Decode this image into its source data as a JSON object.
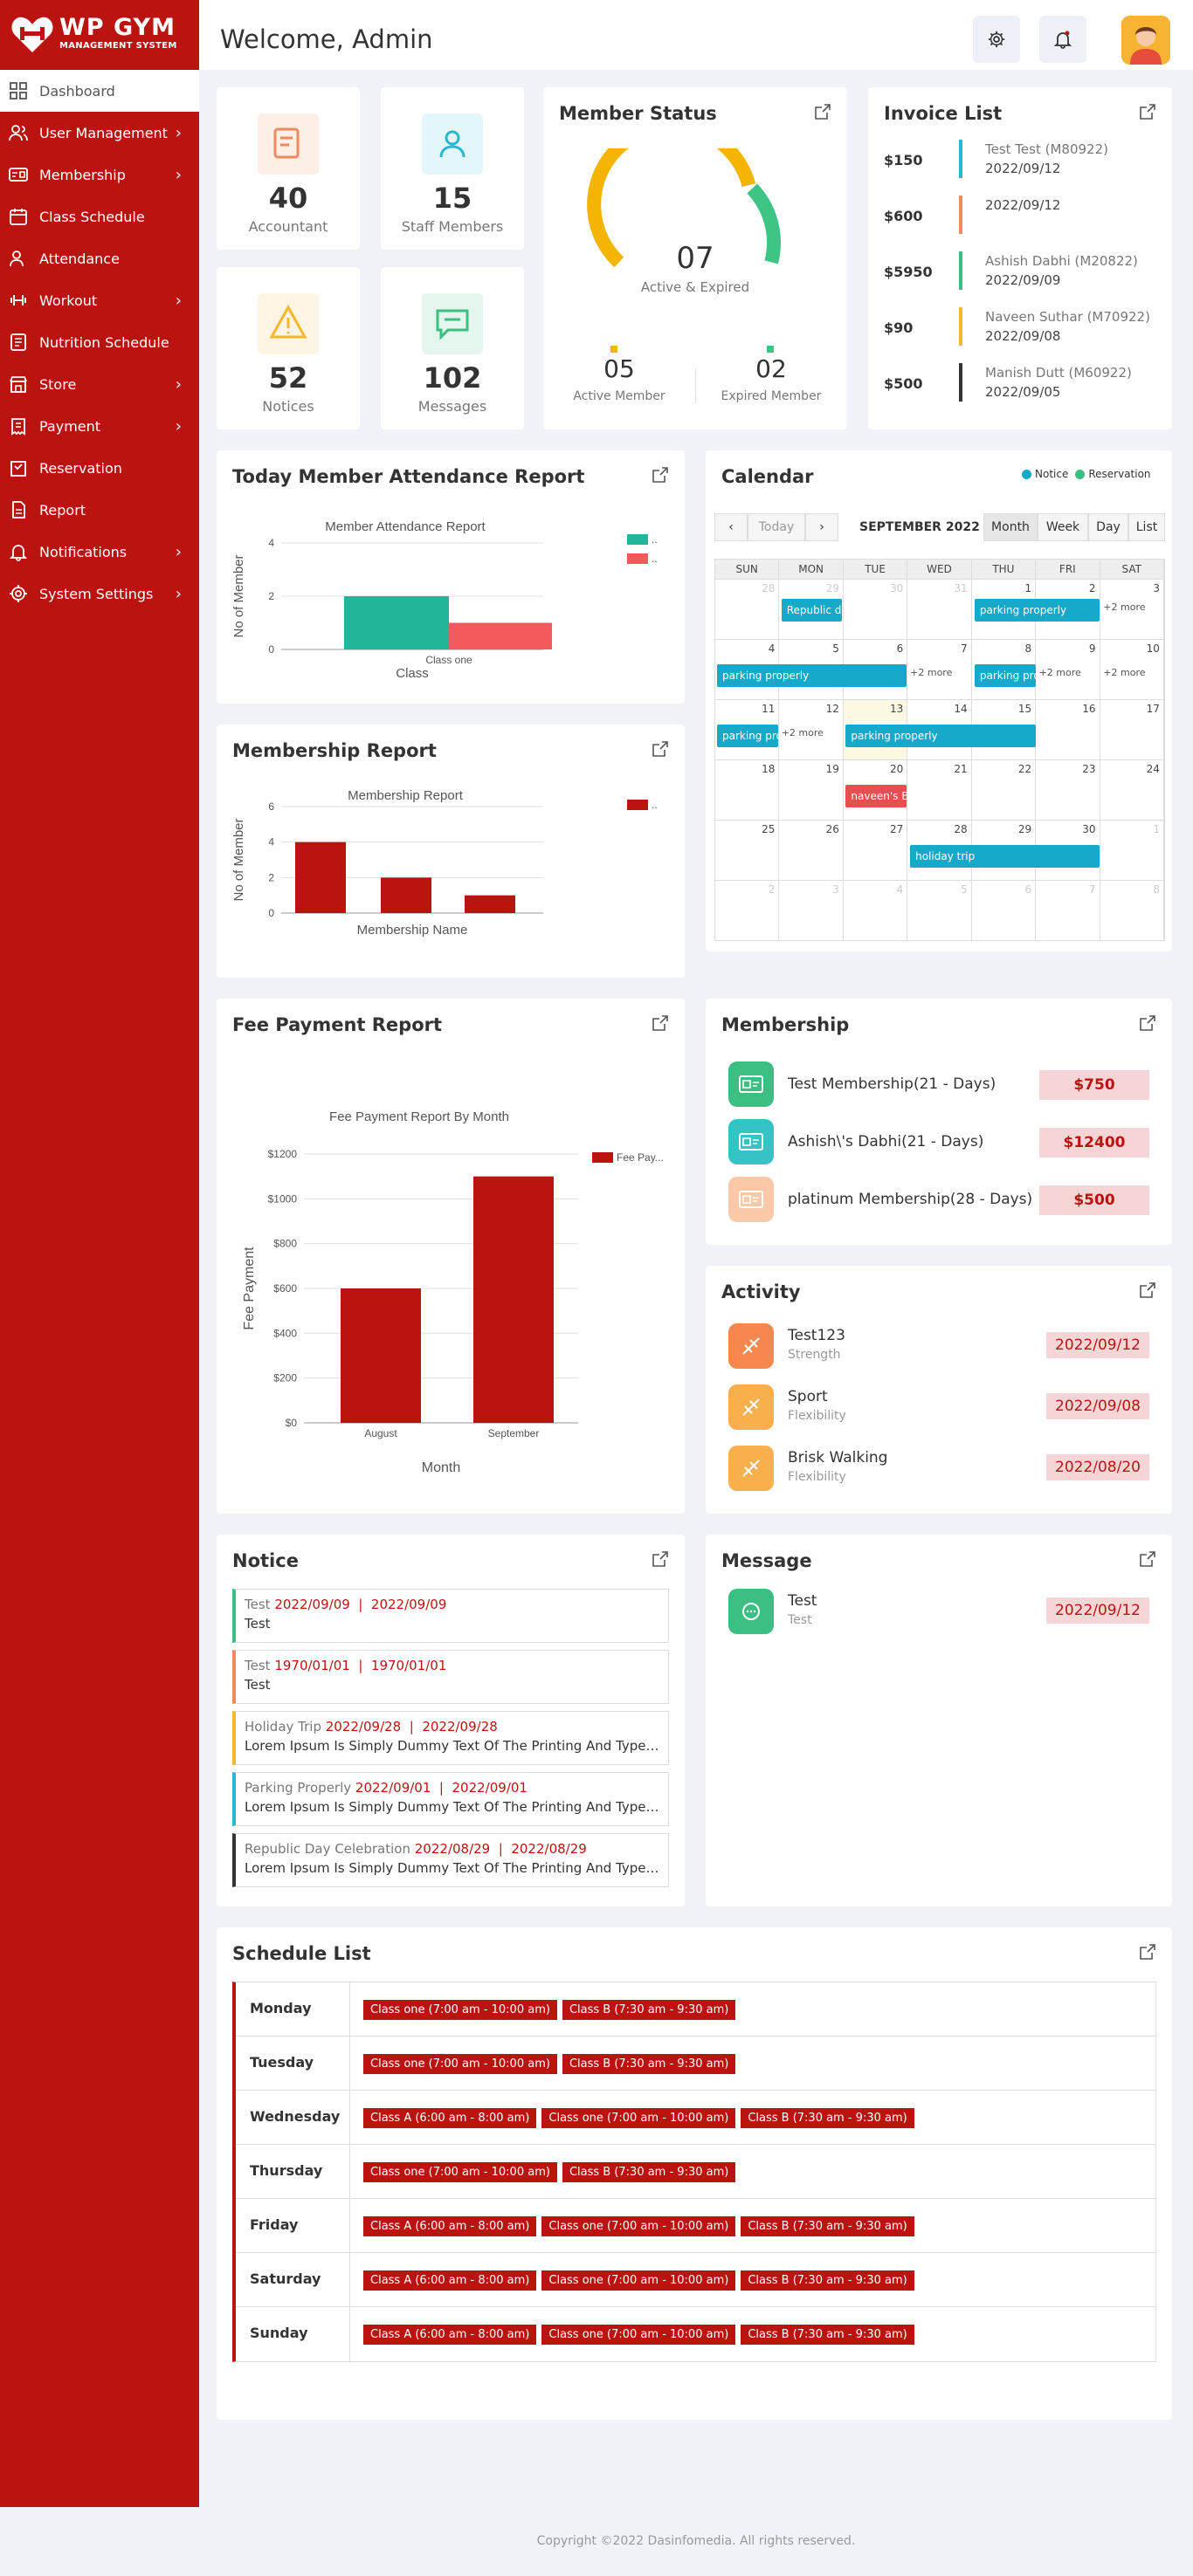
{
  "app": {
    "logo_text": "WP GYM",
    "logo_sub": "MANAGEMENT SYSTEM",
    "welcome": "Welcome, Admin"
  },
  "nav": [
    {
      "label": "Dashboard",
      "icon": "dashboard-icon",
      "chevron": ""
    },
    {
      "label": "User Management",
      "icon": "users-icon",
      "chevron": "›"
    },
    {
      "label": "Membership",
      "icon": "membership-card-icon",
      "chevron": "›"
    },
    {
      "label": "Class Schedule",
      "icon": "calendar-icon",
      "chevron": ""
    },
    {
      "label": "Attendance",
      "icon": "user-check-icon",
      "chevron": ""
    },
    {
      "label": "Workout",
      "icon": "dumbbell-icon",
      "chevron": "›"
    },
    {
      "label": "Nutrition Schedule",
      "icon": "nutrition-icon",
      "chevron": ""
    },
    {
      "label": "Store",
      "icon": "store-icon",
      "chevron": "›"
    },
    {
      "label": "Payment",
      "icon": "payment-icon",
      "chevron": "›"
    },
    {
      "label": "Reservation",
      "icon": "reservation-icon",
      "chevron": ""
    },
    {
      "label": "Report",
      "icon": "report-icon",
      "chevron": ""
    },
    {
      "label": "Notifications",
      "icon": "bell-icon",
      "chevron": "›"
    },
    {
      "label": "System Settings",
      "icon": "gear-icon",
      "chevron": "›"
    }
  ],
  "stats": [
    {
      "value": "40",
      "label": "Accountant",
      "icon": "accountant-icon",
      "bg": "#fdeee6",
      "fg": "#f08a5d"
    },
    {
      "value": "15",
      "label": "Staff Members",
      "icon": "staff-icon",
      "bg": "#e3f7fb",
      "fg": "#26b7d1"
    },
    {
      "value": "52",
      "label": "Notices",
      "icon": "warning-icon",
      "bg": "#fdf5e3",
      "fg": "#f5b72b"
    },
    {
      "value": "102",
      "label": "Messages",
      "icon": "chat-icon",
      "bg": "#e5f6ee",
      "fg": "#3bbf83"
    }
  ],
  "member_status": {
    "title": "Member Status",
    "total": "07",
    "subtitle": "Active & Expired",
    "active_value": "05",
    "active_label": "Active Member",
    "expired_value": "02",
    "expired_label": "Expired Member",
    "active_fraction": 0.714,
    "active_color": "#f5b400",
    "expired_color": "#3ec586"
  },
  "invoice": {
    "title": "Invoice List",
    "rows": [
      {
        "amount": "$150",
        "name": "Test Test (M80922)",
        "date": "2022/09/12",
        "color": "#26b7d1"
      },
      {
        "amount": "$600",
        "name": "",
        "date": "2022/09/12",
        "color": "#f08a5d"
      },
      {
        "amount": "$5950",
        "name": "Ashish Dabhi (M20822)",
        "date": "2022/09/09",
        "color": "#3bbf83"
      },
      {
        "amount": "$90",
        "name": "Naveen Suthar (M70922)",
        "date": "2022/09/08",
        "color": "#f5b72b"
      },
      {
        "amount": "$500",
        "name": "Manish Dutt (M60922)",
        "date": "2022/09/05",
        "color": "#333333"
      }
    ]
  },
  "attendance": {
    "title": "Today Member Attendance Report",
    "chart_data": {
      "type": "bar",
      "title": "Member Attendance Report",
      "categories": [
        "Class one"
      ],
      "series": [
        {
          "name": "",
          "values": [
            2
          ],
          "color": "#23b59a"
        },
        {
          "name": "",
          "values": [
            1
          ],
          "color": "#f05a5a"
        }
      ],
      "xlabel": "Class",
      "ylabel": "No of Member",
      "ylim": [
        0,
        4
      ],
      "yticks": [
        0,
        2,
        4
      ],
      "legend": "top-right",
      "grid": true
    }
  },
  "membership_report": {
    "title": "Membership Report",
    "chart_data": {
      "type": "bar",
      "title": "Membership Report",
      "categories": [
        "",
        "",
        ""
      ],
      "series": [
        {
          "name": "",
          "values": [
            4,
            2,
            1
          ],
          "color": "#bb1410"
        }
      ],
      "xlabel": "Membership Name",
      "ylabel": "No of Member",
      "ylim": [
        0,
        6
      ],
      "yticks": [
        0,
        2,
        4,
        6
      ],
      "legend": "top-right",
      "grid": true
    }
  },
  "fee_report": {
    "title": "Fee Payment Report",
    "chart_data": {
      "type": "bar",
      "title": "Fee Payment Report By Month",
      "categories": [
        "August",
        "September"
      ],
      "series": [
        {
          "name": "Fee Pay...",
          "values": [
            600,
            1100
          ],
          "color": "#bb1410"
        }
      ],
      "xlabel": "Month",
      "ylabel": "Fee Payment",
      "ylim": [
        0,
        1200
      ],
      "yticks": [
        "$0",
        "$200",
        "$400",
        "$600",
        "$800",
        "$1000",
        "$1200"
      ],
      "legend": "top-right",
      "grid": true
    }
  },
  "calendar": {
    "title": "Calendar",
    "legend_notice": "Notice",
    "legend_reservation": "Reservation",
    "today_btn": "Today",
    "month_label": "SEPTEMBER 2022",
    "views": [
      "Month",
      "Week",
      "Day",
      "List"
    ],
    "days": [
      "SUN",
      "MON",
      "TUE",
      "WED",
      "THU",
      "FRI",
      "SAT"
    ],
    "weeks": [
      [
        "28",
        "29",
        "30",
        "31",
        "1",
        "2",
        "3"
      ],
      [
        "4",
        "5",
        "6",
        "7",
        "8",
        "9",
        "10"
      ],
      [
        "11",
        "12",
        "13",
        "14",
        "15",
        "16",
        "17"
      ],
      [
        "18",
        "19",
        "20",
        "21",
        "22",
        "23",
        "24"
      ],
      [
        "25",
        "26",
        "27",
        "28",
        "29",
        "30",
        "1"
      ],
      [
        "2",
        "3",
        "4",
        "5",
        "6",
        "7",
        "8"
      ]
    ],
    "events": {
      "republic": "Republic d",
      "parking1": "parking properly",
      "parking2": "parking properly",
      "parking3": "parking pro",
      "parking4": "parking pro",
      "parking5": "parking properly",
      "naveen": "naveen's B",
      "holiday": "holiday trip",
      "more": "+2 more"
    }
  },
  "membership": {
    "title": "Membership",
    "rows": [
      {
        "name": "Test Membership(21 - Days)",
        "price": "$750",
        "bg": "#3bbf83"
      },
      {
        "name": "Ashish\\'s Dabhi(21 - Days)",
        "price": "$12400",
        "bg": "#35c4c6"
      },
      {
        "name": "platinum Membership(28 - Days)",
        "price": "$500",
        "bg": "#fbc9a8"
      }
    ]
  },
  "activity": {
    "title": "Activity",
    "rows": [
      {
        "name": "Test123",
        "sub": "Strength",
        "date": "2022/09/12",
        "bg": "#f5874f"
      },
      {
        "name": "Sport",
        "sub": "Flexibility",
        "date": "2022/09/08",
        "bg": "#f9b04c"
      },
      {
        "name": "Brisk Walking",
        "sub": "Flexibility",
        "date": "2022/08/20",
        "bg": "#f9b04c"
      }
    ]
  },
  "notice": {
    "title": "Notice",
    "rows": [
      {
        "title": "Test",
        "dates": "2022/09/09  |  2022/09/09",
        "body": "Test",
        "color": "#3bbf83"
      },
      {
        "title": "Test",
        "dates": "1970/01/01  |  1970/01/01",
        "body": "Test",
        "color": "#f08a5d"
      },
      {
        "title": "Holiday Trip",
        "dates": "2022/09/28  |  2022/09/28",
        "body": "Lorem Ipsum Is Simply Dummy Text Of The Printing And Typesetting Industry",
        "color": "#f5b72b"
      },
      {
        "title": "Parking Properly",
        "dates": "2022/09/01  |  2022/09/01",
        "body": "Lorem Ipsum Is Simply Dummy Text Of The Printing And Typesetting Industry",
        "color": "#26b7d1"
      },
      {
        "title": "Republic Day Celebration",
        "dates": "2022/08/29  |  2022/08/29",
        "body": "Lorem Ipsum Is Simply Dummy Text Of The Printing And Typesetting Industry",
        "color": "#333333"
      }
    ]
  },
  "message": {
    "title": "Message",
    "rows": [
      {
        "name": "Test",
        "sub": "Test",
        "date": "2022/09/12"
      }
    ]
  },
  "schedule": {
    "title": "Schedule List",
    "rows": [
      {
        "day": "Monday",
        "classes": [
          "Class one (7:00 am - 10:00 am)",
          "Class B (7:30 am - 9:30 am)"
        ]
      },
      {
        "day": "Tuesday",
        "classes": [
          "Class one (7:00 am - 10:00 am)",
          "Class B (7:30 am - 9:30 am)"
        ]
      },
      {
        "day": "Wednesday",
        "classes": [
          "Class A (6:00 am - 8:00 am)",
          "Class one (7:00 am - 10:00 am)",
          "Class B (7:30 am - 9:30 am)"
        ]
      },
      {
        "day": "Thursday",
        "classes": [
          "Class one (7:00 am - 10:00 am)",
          "Class B (7:30 am - 9:30 am)"
        ]
      },
      {
        "day": "Friday",
        "classes": [
          "Class A (6:00 am - 8:00 am)",
          "Class one (7:00 am - 10:00 am)",
          "Class B (7:30 am - 9:30 am)"
        ]
      },
      {
        "day": "Saturday",
        "classes": [
          "Class A (6:00 am - 8:00 am)",
          "Class one (7:00 am - 10:00 am)",
          "Class B (7:30 am - 9:30 am)"
        ]
      },
      {
        "day": "Sunday",
        "classes": [
          "Class A (6:00 am - 8:00 am)",
          "Class one (7:00 am - 10:00 am)",
          "Class B (7:30 am - 9:30 am)"
        ]
      }
    ]
  },
  "footer": "Copyright ©2022 Dasinfomedia. All rights reserved."
}
